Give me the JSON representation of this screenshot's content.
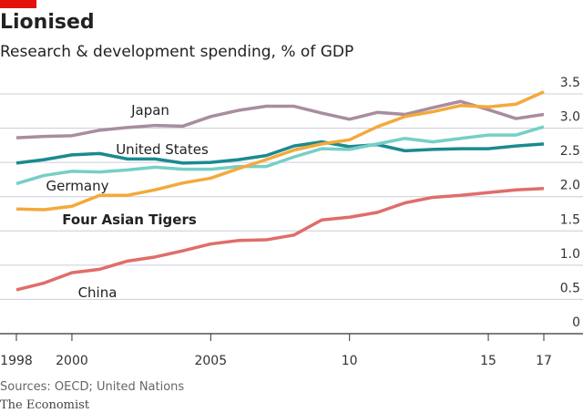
{
  "chart_data": {
    "type": "line",
    "title": "Lionised",
    "subtitle": "Research & development spending, % of GDP",
    "source": "Sources: OECD; United Nations",
    "publisher": "The Economist",
    "x": [
      1998,
      1999,
      2000,
      2001,
      2002,
      2003,
      2004,
      2005,
      2006,
      2007,
      2008,
      2009,
      2010,
      2011,
      2012,
      2013,
      2014,
      2015,
      2016,
      2017
    ],
    "xlim": [
      1998,
      2017
    ],
    "xticks": [
      1998,
      2000,
      2005,
      {
        "value": 2010,
        "label": "10"
      },
      {
        "value": 2015,
        "label": "15"
      },
      {
        "value": 2017,
        "label": "17"
      }
    ],
    "ylim": [
      0,
      3.5
    ],
    "yticks": [
      0,
      0.5,
      {
        "value": 1,
        "label": "1.0"
      },
      1.5,
      {
        "value": 2,
        "label": "2.0"
      },
      2.5,
      {
        "value": 3,
        "label": "3.0"
      },
      3.5
    ],
    "grid": true,
    "series": [
      {
        "name": "Japan",
        "color": "#a88d9e",
        "values": [
          2.86,
          2.88,
          2.89,
          2.97,
          3.01,
          3.04,
          3.03,
          3.17,
          3.26,
          3.32,
          3.32,
          3.22,
          3.13,
          3.23,
          3.2,
          3.3,
          3.39,
          3.27,
          3.14,
          3.2
        ]
      },
      {
        "name": "United States",
        "color": "#1b8a8f",
        "values": [
          2.49,
          2.54,
          2.61,
          2.63,
          2.55,
          2.55,
          2.49,
          2.5,
          2.54,
          2.6,
          2.74,
          2.8,
          2.73,
          2.76,
          2.67,
          2.69,
          2.7,
          2.7,
          2.74,
          2.77
        ]
      },
      {
        "name": "Germany",
        "color": "#76cfc6",
        "values": [
          2.19,
          2.31,
          2.37,
          2.36,
          2.39,
          2.43,
          2.4,
          2.4,
          2.44,
          2.44,
          2.58,
          2.7,
          2.69,
          2.77,
          2.85,
          2.8,
          2.85,
          2.9,
          2.9,
          3.02
        ]
      },
      {
        "name": "Four Asian Tigers",
        "color": "#f3a93b",
        "values": [
          1.82,
          1.81,
          1.86,
          2.02,
          2.02,
          2.1,
          2.2,
          2.27,
          2.41,
          2.54,
          2.68,
          2.77,
          2.83,
          3.02,
          3.17,
          3.24,
          3.33,
          3.31,
          3.35,
          3.53
        ]
      },
      {
        "name": "China",
        "color": "#e06d6a",
        "values": [
          0.64,
          0.74,
          0.89,
          0.94,
          1.06,
          1.12,
          1.21,
          1.31,
          1.36,
          1.37,
          1.44,
          1.66,
          1.7,
          1.77,
          1.91,
          1.99,
          2.02,
          2.06,
          2.1,
          2.12
        ]
      }
    ]
  }
}
